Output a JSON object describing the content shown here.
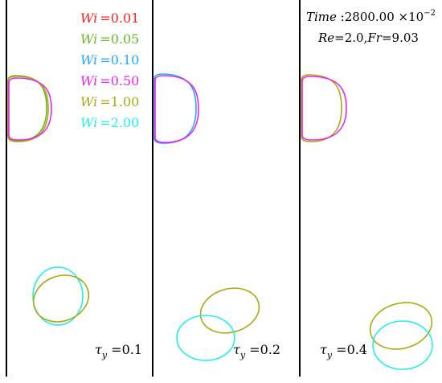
{
  "chart_data": {
    "type": "scatter",
    "time_label": "Time : 2800.00 ×10",
    "time_exponent": "−2",
    "params_label": "Re = 2.0, Fr = 9.03",
    "legend": [
      {
        "wi": "0.01",
        "label": "Wi = 0.01",
        "color": "#ff2020"
      },
      {
        "wi": "0.05",
        "label": "Wi = 0.05",
        "color": "#66bb22"
      },
      {
        "wi": "0.10",
        "label": "Wi = 0.10",
        "color": "#22aaff"
      },
      {
        "wi": "0.50",
        "label": "Wi = 0.50",
        "color": "#ee22ee"
      },
      {
        "wi": "1.00",
        "label": "Wi = 1.00",
        "color": "#aaaa11"
      },
      {
        "wi": "2.00",
        "label": "Wi = 2.00",
        "color": "#22eeee"
      }
    ],
    "panels": [
      {
        "tau_y": "0.1",
        "label": "τy = 0.1"
      },
      {
        "tau_y": "0.2",
        "label": "τy = 0.2"
      },
      {
        "tau_y": "0.4",
        "label": "τy = 0.4"
      }
    ]
  }
}
